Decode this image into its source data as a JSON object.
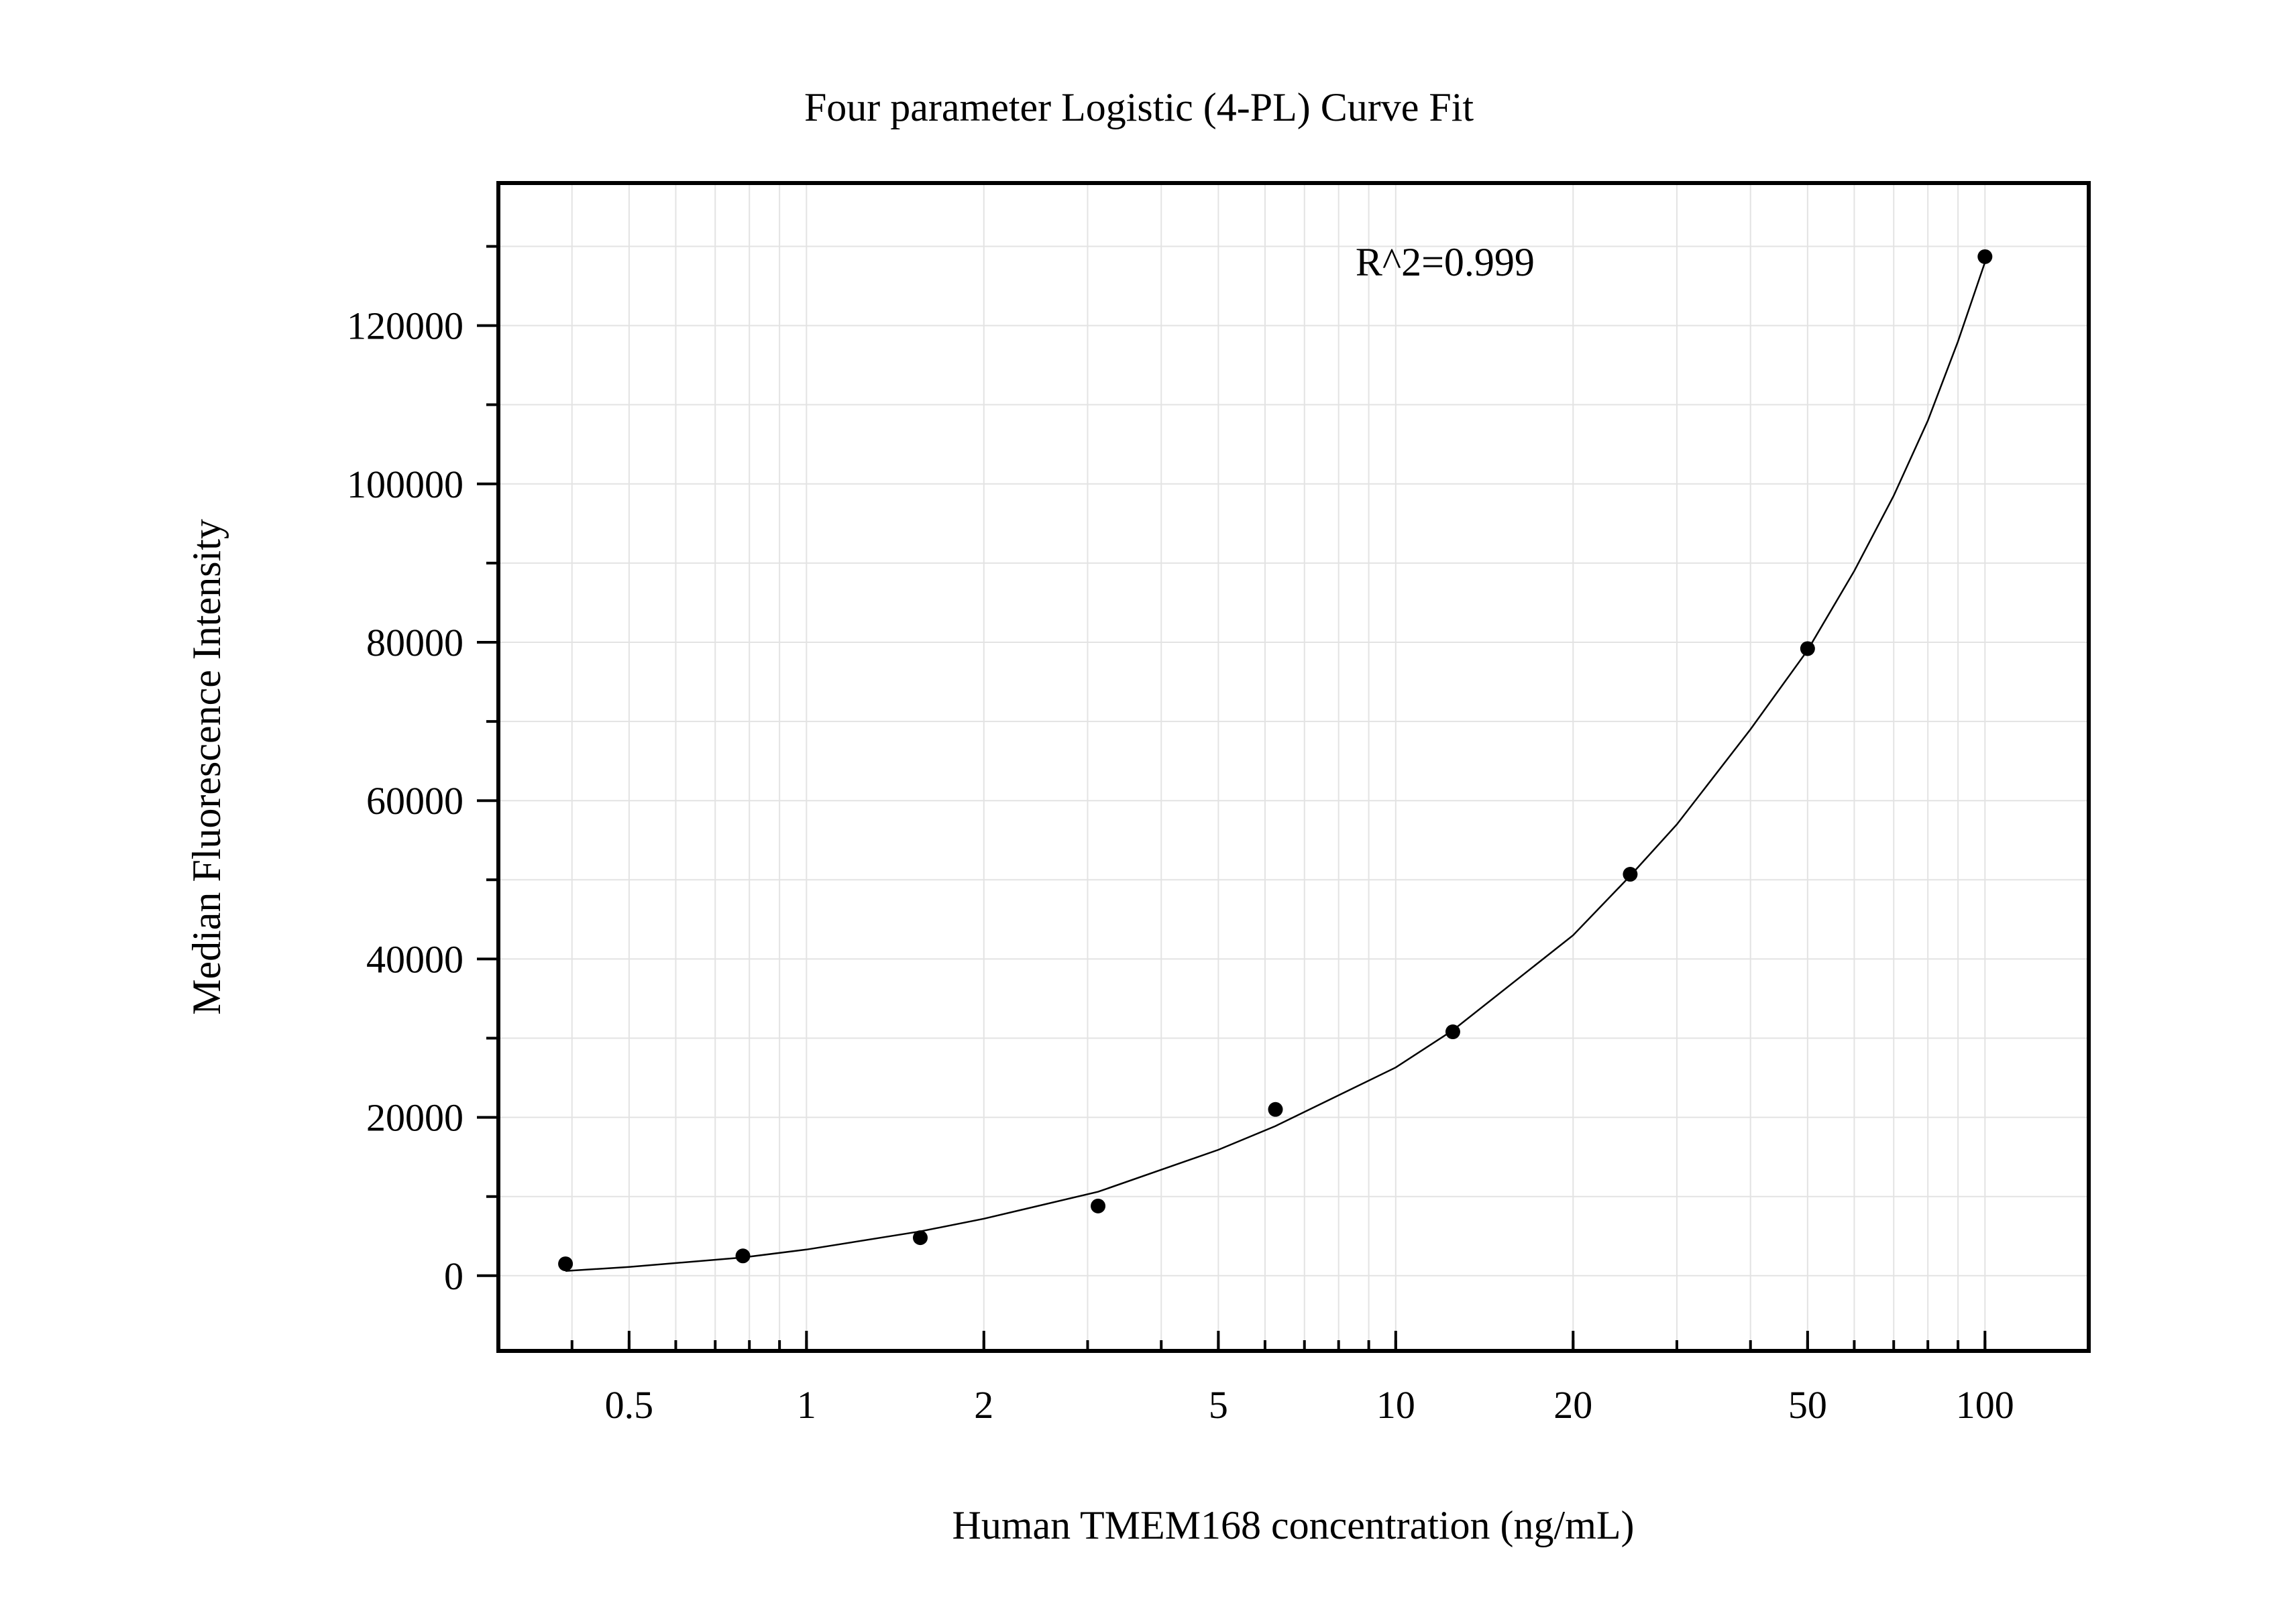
{
  "chart_data": {
    "type": "scatter",
    "title": "Four parameter Logistic (4-PL) Curve Fit",
    "xlabel": "Human TMEM168 concentration (ng/mL)",
    "ylabel": "Median Fluorescence Intensity",
    "x_scale": "log",
    "xlim": [
      0.3,
      150
    ],
    "ylim": [
      -9500,
      138000
    ],
    "x_ticks": [
      {
        "value": 0.5,
        "label": "0.5"
      },
      {
        "value": 1,
        "label": "1"
      },
      {
        "value": 2,
        "label": "2"
      },
      {
        "value": 5,
        "label": "5"
      },
      {
        "value": 10,
        "label": "10"
      },
      {
        "value": 20,
        "label": "20"
      },
      {
        "value": 50,
        "label": "50"
      },
      {
        "value": 100,
        "label": "100"
      }
    ],
    "y_ticks": [
      {
        "value": 0,
        "label": "0"
      },
      {
        "value": 20000,
        "label": "20000"
      },
      {
        "value": 40000,
        "label": "40000"
      },
      {
        "value": 60000,
        "label": "60000"
      },
      {
        "value": 80000,
        "label": "80000"
      },
      {
        "value": 100000,
        "label": "100000"
      },
      {
        "value": 120000,
        "label": "120000"
      }
    ],
    "grid": true,
    "series": [
      {
        "kind": "points",
        "x": [
          0.39,
          0.78,
          1.56,
          3.125,
          6.25,
          12.5,
          25,
          50,
          100
        ],
        "y": [
          1500,
          2500,
          4800,
          8800,
          21000,
          30800,
          50700,
          79200,
          128700
        ]
      },
      {
        "kind": "fit-curve",
        "x": [
          0.39,
          0.5,
          0.78,
          1,
          1.56,
          2,
          3.125,
          5,
          6.25,
          10,
          12.5,
          20,
          25,
          30,
          40,
          50,
          60,
          70,
          80,
          90,
          100
        ],
        "y": [
          600,
          1100,
          2300,
          3300,
          5600,
          7200,
          10600,
          15900,
          18900,
          26300,
          31000,
          43000,
          50500,
          57000,
          69000,
          79000,
          89000,
          98500,
          108000,
          118000,
          128000
        ]
      }
    ],
    "annotations": [
      {
        "text": "R^2=0.999",
        "x": 13,
        "y": 128000
      }
    ]
  }
}
